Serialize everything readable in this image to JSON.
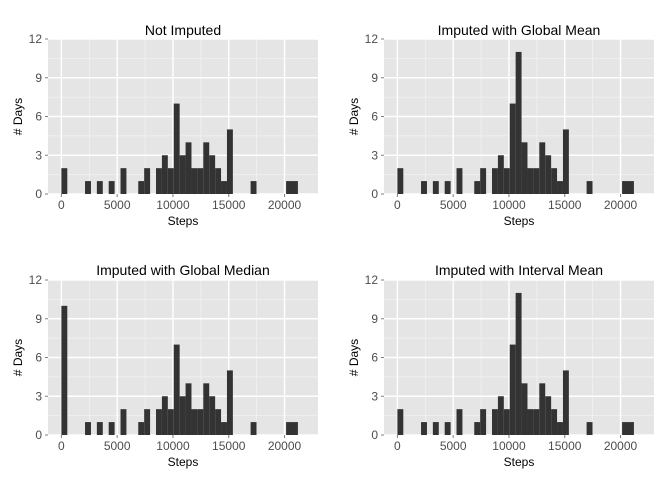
{
  "chart_data": [
    {
      "type": "bar",
      "title": "Not Imputed",
      "xlabel": "Steps",
      "ylabel": "# Days",
      "xlim": [
        -1200,
        23000
      ],
      "ylim": [
        0,
        12
      ],
      "xticks": [
        0,
        5000,
        10000,
        15000,
        20000
      ],
      "xtick_labels": [
        "0",
        "5000",
        "10000",
        "15000",
        "20000"
      ],
      "yticks": [
        0,
        3,
        6,
        9,
        12
      ],
      "ytick_labels": [
        "0",
        "3",
        "6",
        "9",
        "12"
      ],
      "bin_width": 530,
      "bins": [
        {
          "x": 265,
          "y": 2
        },
        {
          "x": 2385,
          "y": 1
        },
        {
          "x": 3445,
          "y": 1
        },
        {
          "x": 4505,
          "y": 1
        },
        {
          "x": 5565,
          "y": 2
        },
        {
          "x": 7155,
          "y": 1
        },
        {
          "x": 7685,
          "y": 2
        },
        {
          "x": 8745,
          "y": 2
        },
        {
          "x": 9275,
          "y": 3
        },
        {
          "x": 9805,
          "y": 2
        },
        {
          "x": 10335,
          "y": 7
        },
        {
          "x": 10865,
          "y": 3
        },
        {
          "x": 11395,
          "y": 4
        },
        {
          "x": 11925,
          "y": 2
        },
        {
          "x": 12455,
          "y": 2
        },
        {
          "x": 12985,
          "y": 4
        },
        {
          "x": 13515,
          "y": 3
        },
        {
          "x": 14045,
          "y": 2
        },
        {
          "x": 14575,
          "y": 1
        },
        {
          "x": 15105,
          "y": 5
        },
        {
          "x": 17225,
          "y": 1
        },
        {
          "x": 20405,
          "y": 1
        },
        {
          "x": 20935,
          "y": 1
        }
      ],
      "grid": true
    },
    {
      "type": "bar",
      "title": "Imputed with Global Mean",
      "xlabel": "Steps",
      "ylabel": "# Days",
      "xlim": [
        -1200,
        23000
      ],
      "ylim": [
        0,
        12
      ],
      "xticks": [
        0,
        5000,
        10000,
        15000,
        20000
      ],
      "xtick_labels": [
        "0",
        "5000",
        "10000",
        "15000",
        "20000"
      ],
      "yticks": [
        0,
        3,
        6,
        9,
        12
      ],
      "ytick_labels": [
        "0",
        "3",
        "6",
        "9",
        "12"
      ],
      "bin_width": 530,
      "bins": [
        {
          "x": 265,
          "y": 2
        },
        {
          "x": 2385,
          "y": 1
        },
        {
          "x": 3445,
          "y": 1
        },
        {
          "x": 4505,
          "y": 1
        },
        {
          "x": 5565,
          "y": 2
        },
        {
          "x": 7155,
          "y": 1
        },
        {
          "x": 7685,
          "y": 2
        },
        {
          "x": 8745,
          "y": 2
        },
        {
          "x": 9275,
          "y": 3
        },
        {
          "x": 9805,
          "y": 2
        },
        {
          "x": 10335,
          "y": 7
        },
        {
          "x": 10865,
          "y": 11
        },
        {
          "x": 11395,
          "y": 4
        },
        {
          "x": 11925,
          "y": 2
        },
        {
          "x": 12455,
          "y": 2
        },
        {
          "x": 12985,
          "y": 4
        },
        {
          "x": 13515,
          "y": 3
        },
        {
          "x": 14045,
          "y": 2
        },
        {
          "x": 14575,
          "y": 1
        },
        {
          "x": 15105,
          "y": 5
        },
        {
          "x": 17225,
          "y": 1
        },
        {
          "x": 20405,
          "y": 1
        },
        {
          "x": 20935,
          "y": 1
        }
      ],
      "grid": true
    },
    {
      "type": "bar",
      "title": "Imputed with Global Median",
      "xlabel": "Steps",
      "ylabel": "# Days",
      "xlim": [
        -1200,
        23000
      ],
      "ylim": [
        0,
        12
      ],
      "xticks": [
        0,
        5000,
        10000,
        15000,
        20000
      ],
      "xtick_labels": [
        "0",
        "5000",
        "10000",
        "15000",
        "20000"
      ],
      "yticks": [
        0,
        3,
        6,
        9,
        12
      ],
      "ytick_labels": [
        "0",
        "3",
        "6",
        "9",
        "12"
      ],
      "bin_width": 530,
      "bins": [
        {
          "x": 265,
          "y": 10
        },
        {
          "x": 2385,
          "y": 1
        },
        {
          "x": 3445,
          "y": 1
        },
        {
          "x": 4505,
          "y": 1
        },
        {
          "x": 5565,
          "y": 2
        },
        {
          "x": 7155,
          "y": 1
        },
        {
          "x": 7685,
          "y": 2
        },
        {
          "x": 8745,
          "y": 2
        },
        {
          "x": 9275,
          "y": 3
        },
        {
          "x": 9805,
          "y": 2
        },
        {
          "x": 10335,
          "y": 7
        },
        {
          "x": 10865,
          "y": 3
        },
        {
          "x": 11395,
          "y": 4
        },
        {
          "x": 11925,
          "y": 2
        },
        {
          "x": 12455,
          "y": 2
        },
        {
          "x": 12985,
          "y": 4
        },
        {
          "x": 13515,
          "y": 3
        },
        {
          "x": 14045,
          "y": 2
        },
        {
          "x": 14575,
          "y": 1
        },
        {
          "x": 15105,
          "y": 5
        },
        {
          "x": 17225,
          "y": 1
        },
        {
          "x": 20405,
          "y": 1
        },
        {
          "x": 20935,
          "y": 1
        }
      ],
      "grid": true
    },
    {
      "type": "bar",
      "title": "Imputed with Interval Mean",
      "xlabel": "Steps",
      "ylabel": "# Days",
      "xlim": [
        -1200,
        23000
      ],
      "ylim": [
        0,
        12
      ],
      "xticks": [
        0,
        5000,
        10000,
        15000,
        20000
      ],
      "xtick_labels": [
        "0",
        "5000",
        "10000",
        "15000",
        "20000"
      ],
      "yticks": [
        0,
        3,
        6,
        9,
        12
      ],
      "ytick_labels": [
        "0",
        "3",
        "6",
        "9",
        "12"
      ],
      "bin_width": 530,
      "bins": [
        {
          "x": 265,
          "y": 2
        },
        {
          "x": 2385,
          "y": 1
        },
        {
          "x": 3445,
          "y": 1
        },
        {
          "x": 4505,
          "y": 1
        },
        {
          "x": 5565,
          "y": 2
        },
        {
          "x": 7155,
          "y": 1
        },
        {
          "x": 7685,
          "y": 2
        },
        {
          "x": 8745,
          "y": 2
        },
        {
          "x": 9275,
          "y": 3
        },
        {
          "x": 9805,
          "y": 2
        },
        {
          "x": 10335,
          "y": 7
        },
        {
          "x": 10865,
          "y": 11
        },
        {
          "x": 11395,
          "y": 4
        },
        {
          "x": 11925,
          "y": 2
        },
        {
          "x": 12455,
          "y": 2
        },
        {
          "x": 12985,
          "y": 4
        },
        {
          "x": 13515,
          "y": 3
        },
        {
          "x": 14045,
          "y": 2
        },
        {
          "x": 14575,
          "y": 1
        },
        {
          "x": 15105,
          "y": 5
        },
        {
          "x": 17225,
          "y": 1
        },
        {
          "x": 20405,
          "y": 1
        },
        {
          "x": 20935,
          "y": 1
        }
      ],
      "grid": true
    }
  ],
  "colors": {
    "panel_background": "#e5e5e5",
    "major_grid": "#ffffff",
    "minor_grid": "#f2f2f2",
    "bar_fill": "#333333",
    "tick_text": "#4d4d4d",
    "tick_mark": "#7f7f7f"
  }
}
